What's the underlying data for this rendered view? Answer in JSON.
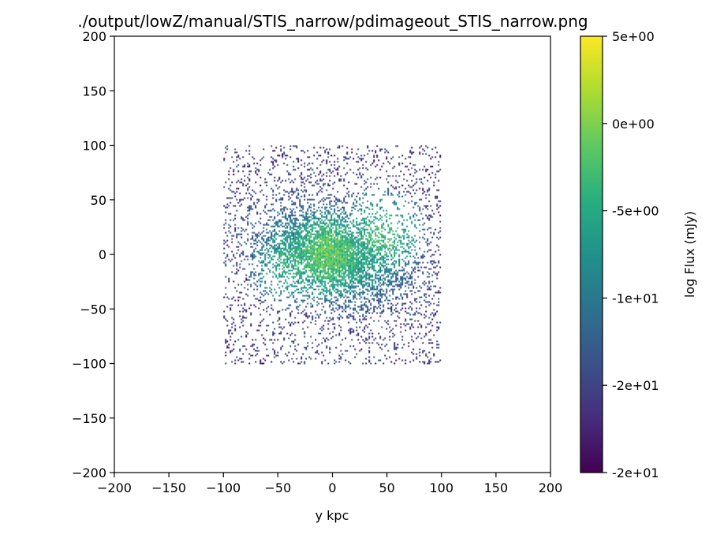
{
  "chart_data": {
    "type": "heatmap",
    "title": "./output/lowZ/manual/STIS_narrow/pdimageout_STIS_narrow.png",
    "xlabel": "y kpc",
    "ylabel": "",
    "xlim": [
      -200,
      200
    ],
    "ylim": [
      -200,
      200
    ],
    "xticks": [
      "−200",
      "−150",
      "−100",
      "−50",
      "0",
      "50",
      "100",
      "150",
      "200"
    ],
    "yticks": [
      "200",
      "150",
      "100",
      "50",
      "0",
      "−50",
      "−100",
      "−150",
      "−200"
    ],
    "xtick_values": [
      -200,
      -150,
      -100,
      -50,
      0,
      50,
      100,
      150,
      200
    ],
    "ytick_values": [
      200,
      150,
      100,
      50,
      0,
      -50,
      -100,
      -150,
      -200
    ],
    "data_extent": {
      "x": [
        -100,
        100
      ],
      "y": [
        -100,
        100
      ]
    },
    "colormap": "viridis",
    "colorbar": {
      "label": "log Flux (mJy)",
      "range": [
        -20,
        5
      ],
      "ticks": [
        "5e+00",
        "0e+00",
        "-5e+00",
        "-1e+01",
        "-2e+01",
        "-2e+01"
      ],
      "placement": "right"
    },
    "grid": false,
    "source_center": [
      0,
      0
    ],
    "features": [
      {
        "x": -5,
        "y": 0,
        "log_flux": -1.5
      },
      {
        "x": 45,
        "y": 18,
        "log_flux": -3.5
      },
      {
        "x": -35,
        "y": -8,
        "log_flux": -4.5
      }
    ]
  }
}
